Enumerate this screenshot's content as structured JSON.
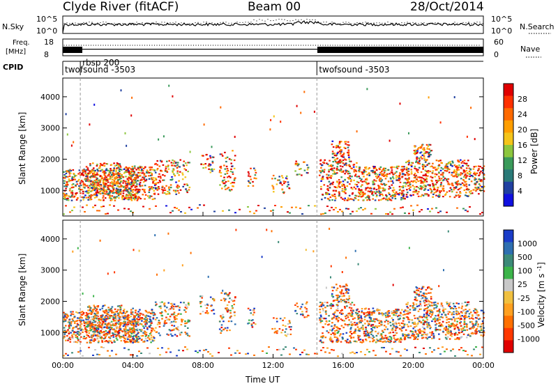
{
  "header": {
    "title": "Clyde River (fitACF)",
    "beam": "Beam 00",
    "date": "28/Oct/2014"
  },
  "noise_panel": {
    "left_label": "N.Sky",
    "right_label": "N.Search",
    "tick_top": "10^5",
    "tick_bottom": "10^0"
  },
  "freq_panel": {
    "left_label_1": "Freq.",
    "left_label_2": "[MHz]",
    "left_tick_top": "18",
    "left_tick_bottom": "8",
    "right_label": "Nave",
    "right_tick_top": "60",
    "right_tick_bottom": "0"
  },
  "cpid_panel": {
    "label": "CPID",
    "segments": [
      {
        "start_hour": 0.0,
        "text": "twofsound -3503"
      },
      {
        "start_hour": 1.0,
        "text": "rbsp 200"
      },
      {
        "start_hour": 14.5,
        "text": "twofsound -3503"
      }
    ]
  },
  "chart_data": [
    {
      "type": "heatmap",
      "name": "power",
      "ylabel": "Slant Range [km]",
      "y_ticks": [
        1000,
        2000,
        3000,
        4000
      ],
      "ylim": [
        180,
        4600
      ],
      "x_ticks": [
        "00:00",
        "04:00",
        "08:00",
        "12:00",
        "16:00",
        "20:00",
        "00:00"
      ],
      "xlim_hours": [
        0,
        24
      ],
      "colorbar": {
        "label": "Power [dB]",
        "ticks": [
          "28",
          "24",
          "20",
          "16",
          "12",
          "8",
          "4"
        ],
        "colors": [
          "#e00000",
          "#ff3000",
          "#ff6a00",
          "#ff9e00",
          "#f4c41a",
          "#8cc63e",
          "#3a9a5a",
          "#2a7a78",
          "#2040a0",
          "#1010e0"
        ]
      }
    },
    {
      "type": "heatmap",
      "name": "velocity",
      "ylabel": "Slant Range [km]",
      "y_ticks": [
        1000,
        2000,
        3000,
        4000
      ],
      "ylim": [
        180,
        4600
      ],
      "x_ticks": [
        "00:00",
        "04:00",
        "08:00",
        "12:00",
        "16:00",
        "20:00",
        "00:00"
      ],
      "xlabel": "Time UT",
      "xlim_hours": [
        0,
        24
      ],
      "colorbar": {
        "label": "Velocity [m s^-1]",
        "ticks": [
          "1000",
          "500",
          "100",
          "25",
          "-25",
          "-100",
          "-500",
          "-1000"
        ],
        "colors": [
          "#1a3cc8",
          "#2e6fb0",
          "#3c8a78",
          "#3cb44a",
          "#c8c8c8",
          "#f0c040",
          "#ffa020",
          "#ff7000",
          "#ff3800",
          "#e00000"
        ]
      }
    }
  ]
}
